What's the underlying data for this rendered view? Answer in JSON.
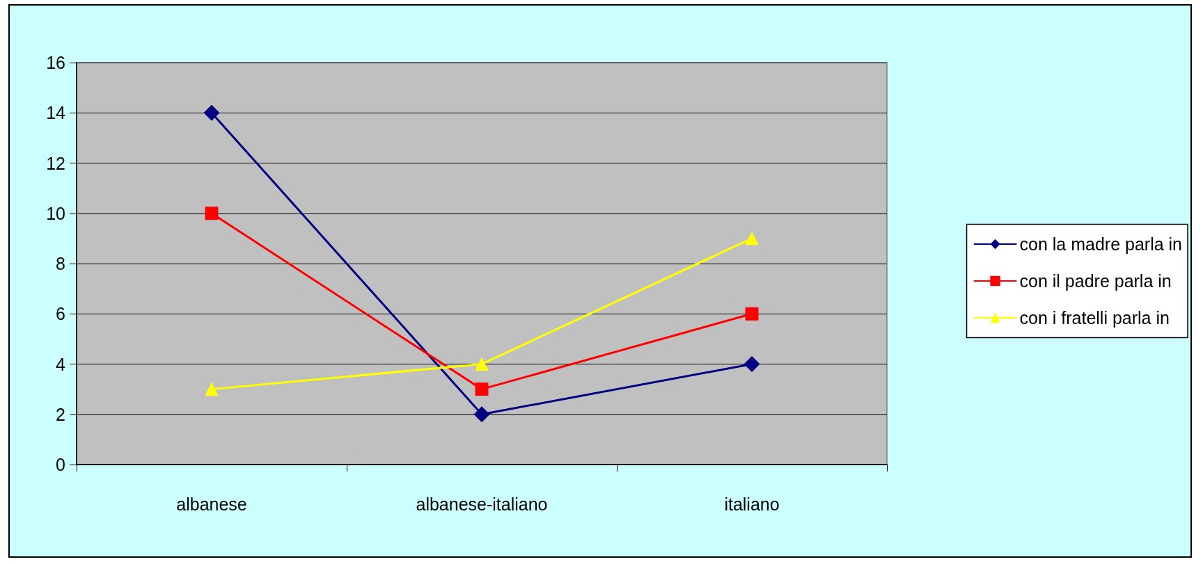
{
  "chart_data": {
    "type": "line",
    "categories": [
      "albanese",
      "albanese-italiano",
      "italiano"
    ],
    "series": [
      {
        "name": "con la madre parla in",
        "color": "#000080",
        "marker": "diamond",
        "values": [
          14,
          2,
          4
        ]
      },
      {
        "name": "con il padre parla in",
        "color": "#ff0000",
        "marker": "square",
        "values": [
          10,
          3,
          6
        ]
      },
      {
        "name": "con i fratelli parla in",
        "color": "#ffff00",
        "marker": "triangle",
        "values": [
          3,
          4,
          9
        ]
      }
    ],
    "ylim": [
      0,
      16
    ],
    "yticks": [
      0,
      2,
      4,
      6,
      8,
      10,
      12,
      14,
      16
    ],
    "grid": "y",
    "legend": "right",
    "line_style": "solid"
  }
}
